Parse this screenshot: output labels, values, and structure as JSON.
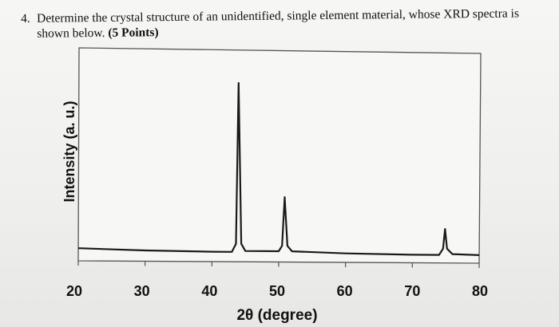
{
  "question": {
    "number": "4.",
    "text_line1": "Determine the crystal structure of an unidentified, single element material, whose XRD spectra is",
    "text_line2": "shown below.",
    "points": "(5 Points)"
  },
  "chart_data": {
    "type": "line",
    "title": "",
    "xlabel": "2θ (degree)",
    "ylabel": "Intensity (a. u.)",
    "xlim": [
      20,
      80
    ],
    "ylim": [
      0,
      100
    ],
    "xticks": [
      20,
      30,
      40,
      50,
      60,
      70,
      80
    ],
    "grid": false,
    "series": [
      {
        "values": [
          [
            20,
            3
          ],
          [
            30,
            2
          ],
          [
            40,
            1.5
          ],
          [
            43.0,
            1.5
          ],
          [
            43.6,
            6
          ],
          [
            44.0,
            95
          ],
          [
            44.4,
            6
          ],
          [
            45.0,
            2
          ],
          [
            50.0,
            2
          ],
          [
            50.5,
            5
          ],
          [
            50.9,
            32
          ],
          [
            51.3,
            5
          ],
          [
            52.0,
            2
          ],
          [
            60,
            1
          ],
          [
            70,
            0.5
          ],
          [
            74.0,
            0.5
          ],
          [
            74.6,
            4
          ],
          [
            74.9,
            15
          ],
          [
            75.2,
            4
          ],
          [
            76,
            1
          ],
          [
            80,
            0.5
          ]
        ]
      }
    ],
    "peaks": [
      {
        "two_theta": 44.0,
        "intensity": 95
      },
      {
        "two_theta": 50.9,
        "intensity": 32
      },
      {
        "two_theta": 74.9,
        "intensity": 15
      }
    ],
    "line_color": "#1a1a1a"
  }
}
